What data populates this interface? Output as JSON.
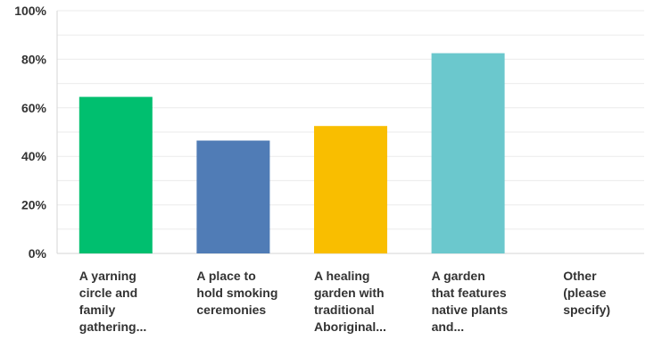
{
  "chart_data": {
    "type": "bar",
    "title": "",
    "xlabel": "",
    "ylabel": "",
    "ylim": [
      0,
      100
    ],
    "y_ticks": [
      "0%",
      "20%",
      "40%",
      "60%",
      "80%",
      "100%"
    ],
    "y_tick_values": [
      0,
      20,
      40,
      60,
      80,
      100
    ],
    "grid": true,
    "legend": "none",
    "categories": [
      [
        "A yarning",
        "circle and",
        "family",
        "gathering..."
      ],
      [
        "A place to",
        "hold smoking",
        "ceremonies"
      ],
      [
        "A healing",
        "garden with",
        "traditional",
        "Aboriginal..."
      ],
      [
        "A garden",
        "that features",
        "native plants",
        "and..."
      ],
      [
        "Other",
        "(please",
        "specify)"
      ]
    ],
    "values": [
      64.5,
      46.5,
      52.5,
      82.5,
      0
    ],
    "colors": [
      "#00bf6f",
      "#507cb6",
      "#f9be00",
      "#6bc8cd",
      "#999999"
    ]
  }
}
